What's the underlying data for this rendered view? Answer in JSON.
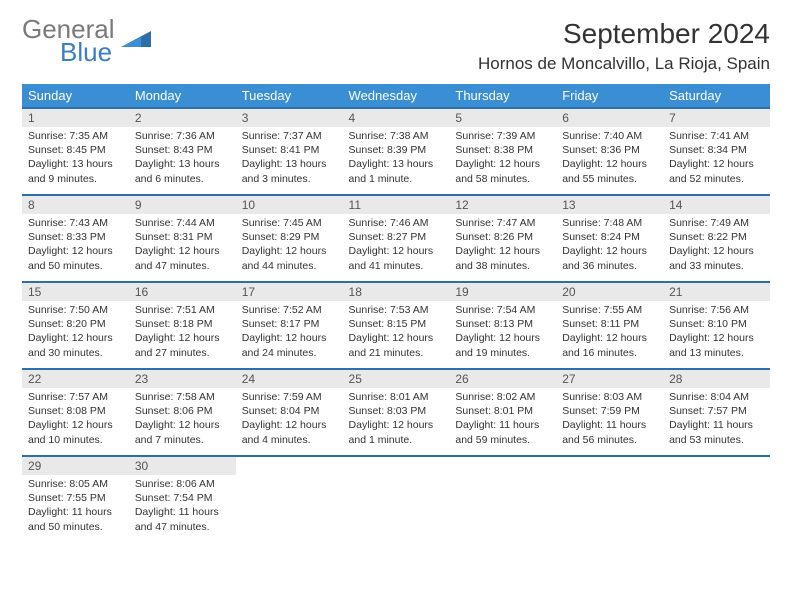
{
  "brand": {
    "g1": "General",
    "g2": "Blue"
  },
  "title": {
    "month": "September 2024",
    "location": "Hornos de Moncalvillo, La Rioja, Spain"
  },
  "colors": {
    "header_bg": "#3a8fd4",
    "header_border": "#2d6fa8",
    "daynum_bg": "#e9e9e9",
    "text": "#333333",
    "brand_blue": "#3a7fc4"
  },
  "weekday_labels": [
    "Sunday",
    "Monday",
    "Tuesday",
    "Wednesday",
    "Thursday",
    "Friday",
    "Saturday"
  ],
  "weeks": [
    [
      {
        "n": "1",
        "sr": "Sunrise: 7:35 AM",
        "ss": "Sunset: 8:45 PM",
        "d1": "Daylight: 13 hours",
        "d2": "and 9 minutes."
      },
      {
        "n": "2",
        "sr": "Sunrise: 7:36 AM",
        "ss": "Sunset: 8:43 PM",
        "d1": "Daylight: 13 hours",
        "d2": "and 6 minutes."
      },
      {
        "n": "3",
        "sr": "Sunrise: 7:37 AM",
        "ss": "Sunset: 8:41 PM",
        "d1": "Daylight: 13 hours",
        "d2": "and 3 minutes."
      },
      {
        "n": "4",
        "sr": "Sunrise: 7:38 AM",
        "ss": "Sunset: 8:39 PM",
        "d1": "Daylight: 13 hours",
        "d2": "and 1 minute."
      },
      {
        "n": "5",
        "sr": "Sunrise: 7:39 AM",
        "ss": "Sunset: 8:38 PM",
        "d1": "Daylight: 12 hours",
        "d2": "and 58 minutes."
      },
      {
        "n": "6",
        "sr": "Sunrise: 7:40 AM",
        "ss": "Sunset: 8:36 PM",
        "d1": "Daylight: 12 hours",
        "d2": "and 55 minutes."
      },
      {
        "n": "7",
        "sr": "Sunrise: 7:41 AM",
        "ss": "Sunset: 8:34 PM",
        "d1": "Daylight: 12 hours",
        "d2": "and 52 minutes."
      }
    ],
    [
      {
        "n": "8",
        "sr": "Sunrise: 7:43 AM",
        "ss": "Sunset: 8:33 PM",
        "d1": "Daylight: 12 hours",
        "d2": "and 50 minutes."
      },
      {
        "n": "9",
        "sr": "Sunrise: 7:44 AM",
        "ss": "Sunset: 8:31 PM",
        "d1": "Daylight: 12 hours",
        "d2": "and 47 minutes."
      },
      {
        "n": "10",
        "sr": "Sunrise: 7:45 AM",
        "ss": "Sunset: 8:29 PM",
        "d1": "Daylight: 12 hours",
        "d2": "and 44 minutes."
      },
      {
        "n": "11",
        "sr": "Sunrise: 7:46 AM",
        "ss": "Sunset: 8:27 PM",
        "d1": "Daylight: 12 hours",
        "d2": "and 41 minutes."
      },
      {
        "n": "12",
        "sr": "Sunrise: 7:47 AM",
        "ss": "Sunset: 8:26 PM",
        "d1": "Daylight: 12 hours",
        "d2": "and 38 minutes."
      },
      {
        "n": "13",
        "sr": "Sunrise: 7:48 AM",
        "ss": "Sunset: 8:24 PM",
        "d1": "Daylight: 12 hours",
        "d2": "and 36 minutes."
      },
      {
        "n": "14",
        "sr": "Sunrise: 7:49 AM",
        "ss": "Sunset: 8:22 PM",
        "d1": "Daylight: 12 hours",
        "d2": "and 33 minutes."
      }
    ],
    [
      {
        "n": "15",
        "sr": "Sunrise: 7:50 AM",
        "ss": "Sunset: 8:20 PM",
        "d1": "Daylight: 12 hours",
        "d2": "and 30 minutes."
      },
      {
        "n": "16",
        "sr": "Sunrise: 7:51 AM",
        "ss": "Sunset: 8:18 PM",
        "d1": "Daylight: 12 hours",
        "d2": "and 27 minutes."
      },
      {
        "n": "17",
        "sr": "Sunrise: 7:52 AM",
        "ss": "Sunset: 8:17 PM",
        "d1": "Daylight: 12 hours",
        "d2": "and 24 minutes."
      },
      {
        "n": "18",
        "sr": "Sunrise: 7:53 AM",
        "ss": "Sunset: 8:15 PM",
        "d1": "Daylight: 12 hours",
        "d2": "and 21 minutes."
      },
      {
        "n": "19",
        "sr": "Sunrise: 7:54 AM",
        "ss": "Sunset: 8:13 PM",
        "d1": "Daylight: 12 hours",
        "d2": "and 19 minutes."
      },
      {
        "n": "20",
        "sr": "Sunrise: 7:55 AM",
        "ss": "Sunset: 8:11 PM",
        "d1": "Daylight: 12 hours",
        "d2": "and 16 minutes."
      },
      {
        "n": "21",
        "sr": "Sunrise: 7:56 AM",
        "ss": "Sunset: 8:10 PM",
        "d1": "Daylight: 12 hours",
        "d2": "and 13 minutes."
      }
    ],
    [
      {
        "n": "22",
        "sr": "Sunrise: 7:57 AM",
        "ss": "Sunset: 8:08 PM",
        "d1": "Daylight: 12 hours",
        "d2": "and 10 minutes."
      },
      {
        "n": "23",
        "sr": "Sunrise: 7:58 AM",
        "ss": "Sunset: 8:06 PM",
        "d1": "Daylight: 12 hours",
        "d2": "and 7 minutes."
      },
      {
        "n": "24",
        "sr": "Sunrise: 7:59 AM",
        "ss": "Sunset: 8:04 PM",
        "d1": "Daylight: 12 hours",
        "d2": "and 4 minutes."
      },
      {
        "n": "25",
        "sr": "Sunrise: 8:01 AM",
        "ss": "Sunset: 8:03 PM",
        "d1": "Daylight: 12 hours",
        "d2": "and 1 minute."
      },
      {
        "n": "26",
        "sr": "Sunrise: 8:02 AM",
        "ss": "Sunset: 8:01 PM",
        "d1": "Daylight: 11 hours",
        "d2": "and 59 minutes."
      },
      {
        "n": "27",
        "sr": "Sunrise: 8:03 AM",
        "ss": "Sunset: 7:59 PM",
        "d1": "Daylight: 11 hours",
        "d2": "and 56 minutes."
      },
      {
        "n": "28",
        "sr": "Sunrise: 8:04 AM",
        "ss": "Sunset: 7:57 PM",
        "d1": "Daylight: 11 hours",
        "d2": "and 53 minutes."
      }
    ],
    [
      {
        "n": "29",
        "sr": "Sunrise: 8:05 AM",
        "ss": "Sunset: 7:55 PM",
        "d1": "Daylight: 11 hours",
        "d2": "and 50 minutes."
      },
      {
        "n": "30",
        "sr": "Sunrise: 8:06 AM",
        "ss": "Sunset: 7:54 PM",
        "d1": "Daylight: 11 hours",
        "d2": "and 47 minutes."
      },
      null,
      null,
      null,
      null,
      null
    ]
  ]
}
